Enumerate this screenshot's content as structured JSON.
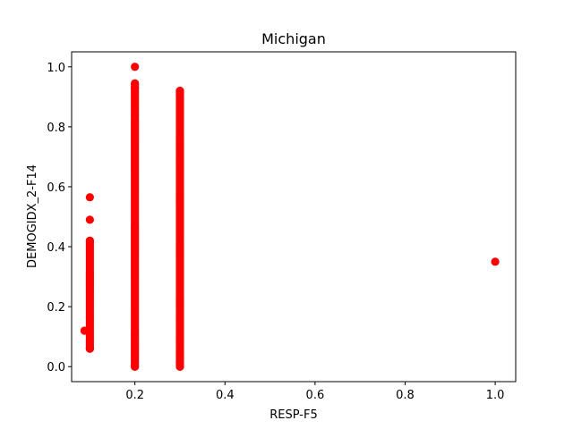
{
  "chart_data": {
    "type": "scatter",
    "title": "Michigan",
    "xlabel": "RESP-F5",
    "ylabel": "DEMOGIDX_2-F14",
    "xlim": [
      0.0595,
      1.0455
    ],
    "ylim": [
      -0.05,
      1.05
    ],
    "xticks": [
      0.2,
      0.4,
      0.6,
      0.8,
      1.0
    ],
    "xtick_labels": [
      "0.2",
      "0.4",
      "0.6",
      "0.8",
      "1.0"
    ],
    "yticks": [
      0.0,
      0.2,
      0.4,
      0.6,
      0.8,
      1.0
    ],
    "ytick_labels": [
      "0.0",
      "0.2",
      "0.4",
      "0.6",
      "0.8",
      "1.0"
    ],
    "grid": false,
    "marker_color": "#ff0000",
    "series": [
      {
        "columns": [
          {
            "x": 0.1,
            "y_min": 0.06,
            "y_max": 0.42
          },
          {
            "x": 0.2,
            "y_min": 0.0,
            "y_max": 0.94
          },
          {
            "x": 0.3,
            "y_min": 0.0,
            "y_max": 0.92
          }
        ],
        "points": [
          {
            "x": 0.088,
            "y": 0.12
          },
          {
            "x": 0.1,
            "y": 0.565
          },
          {
            "x": 0.1,
            "y": 0.49
          },
          {
            "x": 0.1,
            "y": 0.42
          },
          {
            "x": 0.1,
            "y": 0.06
          },
          {
            "x": 0.2,
            "y": 1.0
          },
          {
            "x": 0.2,
            "y": 0.945
          },
          {
            "x": 0.2,
            "y": 0.93
          },
          {
            "x": 0.2,
            "y": 0.0
          },
          {
            "x": 0.3,
            "y": 0.92
          },
          {
            "x": 0.3,
            "y": 0.0
          },
          {
            "x": 1.0,
            "y": 0.35
          }
        ]
      }
    ]
  }
}
